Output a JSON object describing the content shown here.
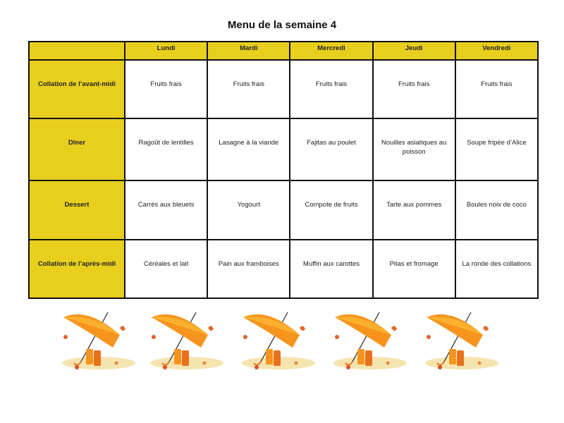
{
  "title": "Menu de la semaine 4",
  "colors": {
    "header_yellow": "#e8cf1e",
    "border": "#111111",
    "umbrella": "#f7941d"
  },
  "days": [
    "",
    "Lundi",
    "Mardi",
    "Mercredi",
    "Jeudi",
    "Vendredi"
  ],
  "rows": [
    {
      "label": "Collation de l’avant-midi",
      "cells": [
        "Fruits frais",
        "Fruits frais",
        "Fruits frais",
        "Fruits frais",
        "Fruits frais"
      ]
    },
    {
      "label": "Dîner",
      "cells": [
        "Ragoût de lentilles",
        "Lasagne à la viande",
        "Fajitas au poulet",
        "Nouilles asiatiques au poisson",
        "Soupe fripée d’Alice"
      ]
    },
    {
      "label": "Dessert",
      "cells": [
        "Carrés aux bleuets",
        "Yogourt",
        "Compote de fruits",
        "Tarte aux pommes",
        "Boules noix de coco"
      ]
    },
    {
      "label": "Collation de l’après-midi",
      "cells": [
        "Céréales et lait",
        "Pain aux framboises",
        "Muffin aux carottes",
        "Pitas et fromage",
        "La ronde des collations"
      ]
    }
  ],
  "decorations": {
    "icon": "umbrella-rain-boots-icon",
    "count": 5
  }
}
